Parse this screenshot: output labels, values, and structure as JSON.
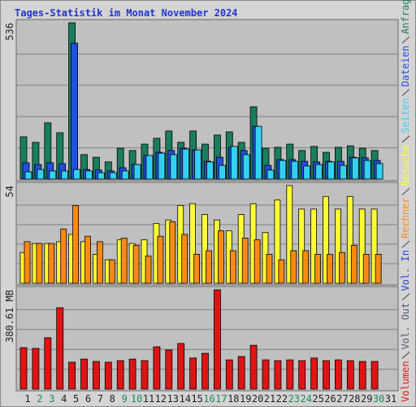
{
  "title": "Tages-Statistik im Monat November 2024",
  "chart_data": [
    {
      "type": "bar",
      "categories": [
        "1",
        "2",
        "3",
        "4",
        "5",
        "6",
        "7",
        "8",
        "9",
        "10",
        "11",
        "12",
        "13",
        "14",
        "15",
        "16",
        "17",
        "18",
        "19",
        "20",
        "21",
        "22",
        "23",
        "24",
        "25",
        "26",
        "27",
        "28",
        "29",
        "30",
        "31"
      ],
      "ylim": [
        0,
        536
      ],
      "yticks": [
        536
      ],
      "grid_divisions": 5,
      "series": [
        {
          "name": "Anfragen",
          "color": "#1a7d5e",
          "values": [
            145,
            126,
            193,
            159,
            536,
            84,
            75,
            59,
            106,
            98,
            120,
            140,
            165,
            126,
            165,
            120,
            151,
            162,
            126,
            248,
            106,
            109,
            120,
            98,
            112,
            92,
            109,
            114,
            106,
            98,
            null
          ]
        },
        {
          "name": "Dateien",
          "color": "#2050e0",
          "values": [
            56,
            50,
            56,
            53,
            466,
            33,
            31,
            28,
            39,
            50,
            81,
            92,
            98,
            106,
            100,
            61,
            75,
            109,
            98,
            181,
            47,
            67,
            67,
            61,
            59,
            61,
            61,
            75,
            73,
            64,
            null
          ]
        },
        {
          "name": "Seiten",
          "color": "#33d0f2",
          "values": [
            25,
            33,
            28,
            28,
            33,
            28,
            22,
            22,
            28,
            50,
            81,
            89,
            84,
            103,
            100,
            59,
            47,
            112,
            84,
            181,
            31,
            64,
            61,
            45,
            50,
            59,
            47,
            73,
            64,
            53,
            null
          ]
        }
      ]
    },
    {
      "type": "bar",
      "categories": [
        "1",
        "2",
        "3",
        "4",
        "5",
        "6",
        "7",
        "8",
        "9",
        "10",
        "11",
        "12",
        "13",
        "14",
        "15",
        "16",
        "17",
        "18",
        "19",
        "20",
        "21",
        "22",
        "23",
        "24",
        "25",
        "26",
        "27",
        "28",
        "29",
        "30",
        "31"
      ],
      "ylim": [
        0,
        54
      ],
      "yticks": [
        54
      ],
      "grid_divisions": 5,
      "series": [
        {
          "name": "Besuche",
          "color": "#ffff33",
          "values": [
            17,
            22,
            22,
            23,
            27,
            23,
            16,
            13,
            24,
            22,
            24,
            33,
            35,
            43,
            44,
            38,
            35,
            29,
            38,
            44,
            28,
            46,
            54,
            41,
            41,
            48,
            41,
            48,
            41,
            41,
            null
          ]
        },
        {
          "name": "Rechner",
          "color": "#ff8a14",
          "values": [
            23,
            22,
            22,
            30,
            43,
            26,
            23,
            13,
            25,
            21,
            15,
            26,
            34,
            27,
            16,
            18,
            29,
            18,
            25,
            24,
            16,
            13,
            18,
            18,
            16,
            16,
            17,
            21,
            16,
            16,
            null
          ]
        }
      ]
    },
    {
      "type": "bar",
      "categories": [
        "1",
        "2",
        "3",
        "4",
        "5",
        "6",
        "7",
        "8",
        "9",
        "10",
        "11",
        "12",
        "13",
        "14",
        "15",
        "16",
        "17",
        "18",
        "19",
        "20",
        "21",
        "22",
        "23",
        "24",
        "25",
        "26",
        "27",
        "28",
        "29",
        "30",
        "31"
      ],
      "category_colors": [
        "#222",
        "#1a8a5a",
        "#1a8a5a",
        "#222",
        "#222",
        "#222",
        "#222",
        "#222",
        "#1a8a5a",
        "#1a8a5a",
        "#222",
        "#222",
        "#222",
        "#222",
        "#222",
        "#1a8a5a",
        "#1a8a5a",
        "#222",
        "#222",
        "#222",
        "#222",
        "#222",
        "#1a8a5a",
        "#1a8a5a",
        "#222",
        "#222",
        "#222",
        "#222",
        "#222",
        "#1a8a5a",
        "#222"
      ],
      "ylim": [
        0,
        380.61
      ],
      "yticks": [
        {
          "value": 380.61,
          "label": "380.61 MB"
        }
      ],
      "grid_divisions": 5,
      "series": [
        {
          "name": "Volumen",
          "color": "#e01414",
          "values": [
            159,
            156,
            197,
            312,
            103,
            115,
            106,
            103,
            109,
            115,
            109,
            162,
            150,
            175,
            119,
            137,
            380.61,
            112,
            125,
            168,
            112,
            109,
            112,
            109,
            119,
            109,
            112,
            109,
            106,
            106,
            null
          ]
        }
      ],
      "extra_legend": [
        {
          "name": "Vol. Out",
          "color": "#505a70"
        },
        {
          "name": "Vol. In",
          "color": "#2040d0"
        }
      ]
    }
  ]
}
